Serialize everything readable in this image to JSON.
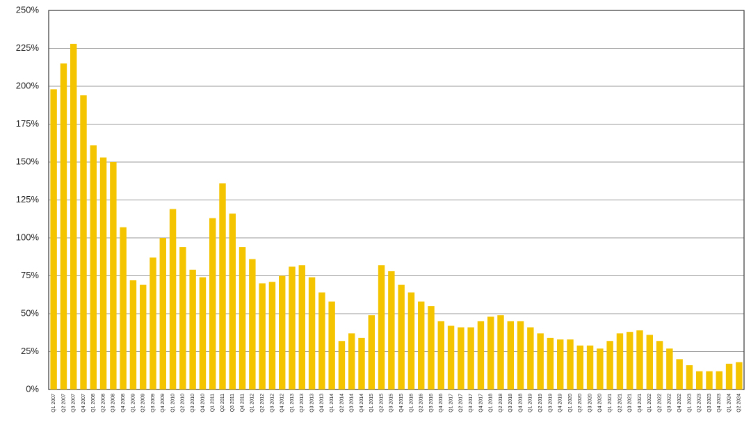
{
  "chart_data": {
    "type": "bar",
    "categories": [
      "Q1 2007",
      "Q2 2007",
      "Q3 2007",
      "Q4 2007",
      "Q1 2008",
      "Q2 2008",
      "Q3 2008",
      "Q4 2008",
      "Q1 2009",
      "Q2 2009",
      "Q3 2009",
      "Q4 2009",
      "Q1 2010",
      "Q2 2010",
      "Q3 2010",
      "Q4 2010",
      "Q1 2011",
      "Q2 2011",
      "Q3 2011",
      "Q4 2011",
      "Q1 2012",
      "Q2 2012",
      "Q3 2012",
      "Q4 2012",
      "Q1 2013",
      "Q2 2013",
      "Q3 2013",
      "Q4 2013",
      "Q1 2014",
      "Q2 2014",
      "Q3 2014",
      "Q4 2014",
      "Q1 2015",
      "Q2 2015",
      "Q3 2015",
      "Q4 2015",
      "Q1 2016",
      "Q2 2016",
      "Q3 2016",
      "Q4 2016",
      "Q1 2017",
      "Q2 2017",
      "Q3 2017",
      "Q4 2017",
      "Q1 2018",
      "Q2 2018",
      "Q3 2018",
      "Q4 2018",
      "Q1 2019",
      "Q2 2019",
      "Q3 2019",
      "Q4 2019",
      "Q1 2020",
      "Q2 2020",
      "Q3 2020",
      "Q4 2020",
      "Q1 2021",
      "Q2 2021",
      "Q3 2021",
      "Q4 2021",
      "Q1 2022",
      "Q2 2022",
      "Q3 2022",
      "Q4 2022",
      "Q1 2023",
      "Q2 2023",
      "Q3 2023",
      "Q4 2023",
      "Q1 2024",
      "Q2 2024"
    ],
    "values": [
      198,
      215,
      228,
      194,
      161,
      153,
      150,
      107,
      72,
      69,
      87,
      100,
      119,
      94,
      79,
      74,
      113,
      136,
      116,
      94,
      86,
      70,
      71,
      75,
      81,
      82,
      74,
      64,
      58,
      32,
      37,
      34,
      49,
      82,
      78,
      69,
      64,
      58,
      55,
      45,
      42,
      41,
      41,
      45,
      48,
      49,
      45,
      45,
      41,
      37,
      34,
      33,
      33,
      29,
      29,
      27,
      32,
      37,
      38,
      39,
      36,
      32,
      27,
      20,
      16,
      12,
      12,
      12,
      17,
      18
    ],
    "color": "#f5c400",
    "ylim": [
      0,
      250
    ],
    "yticks": [
      {
        "value": 0,
        "label": "0%"
      },
      {
        "value": 25,
        "label": "25%"
      },
      {
        "value": 50,
        "label": "50%"
      },
      {
        "value": 75,
        "label": "75%"
      },
      {
        "value": 100,
        "label": "100%"
      },
      {
        "value": 125,
        "label": "125%"
      },
      {
        "value": 150,
        "label": "150%"
      },
      {
        "value": 175,
        "label": "175%"
      },
      {
        "value": 200,
        "label": "200%"
      },
      {
        "value": 225,
        "label": "225%"
      },
      {
        "value": 250,
        "label": "250%"
      }
    ],
    "grid": true
  }
}
